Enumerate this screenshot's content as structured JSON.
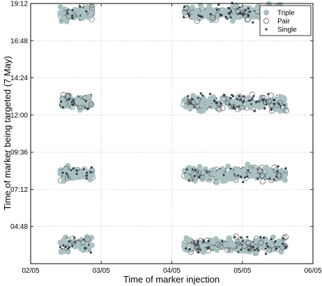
{
  "chart_data": {
    "type": "scatter",
    "xlabel": "Time of marker injection",
    "ylabel": "Time of marker being targeted (7 May)",
    "x_ticks": [
      "02/05",
      "03/05",
      "04/05",
      "05/05",
      "06/05"
    ],
    "y_ticks": [
      "04:48",
      "07:12",
      "09:36",
      "12:00",
      "14:24",
      "16:48",
      "19:12"
    ],
    "x_range_days": [
      2,
      6
    ],
    "y_range": [
      "02:24",
      "19:12"
    ],
    "grid": true,
    "legend_position": "top-right",
    "colors": {
      "triple": "#a9c1c1",
      "pair_stroke": "#555555",
      "single": "#2d3747"
    },
    "clusters": [
      {
        "y": "03:36",
        "x_groups": [
          [
            "02/05 10:00",
            "02/05 21:00"
          ],
          [
            "04/05 04:00",
            "05/05 15:00"
          ]
        ]
      },
      {
        "y": "08:12",
        "x_groups": [
          [
            "02/05 10:00",
            "02/05 21:00"
          ],
          [
            "04/05 04:00",
            "05/05 15:00"
          ]
        ]
      },
      {
        "y": "12:48",
        "x_groups": [
          [
            "02/05 10:00",
            "02/05 21:00"
          ],
          [
            "04/05 04:00",
            "05/05 15:00"
          ]
        ]
      },
      {
        "y": "18:36",
        "x_groups": [
          [
            "02/05 10:00",
            "02/05 21:00"
          ],
          [
            "04/05 04:00",
            "05/05 15:00"
          ]
        ]
      }
    ],
    "series": [
      {
        "name": "Triple",
        "marker": "filled-circle"
      },
      {
        "name": "Pair",
        "marker": "open-circle"
      },
      {
        "name": "Single",
        "marker": "dot"
      }
    ]
  }
}
